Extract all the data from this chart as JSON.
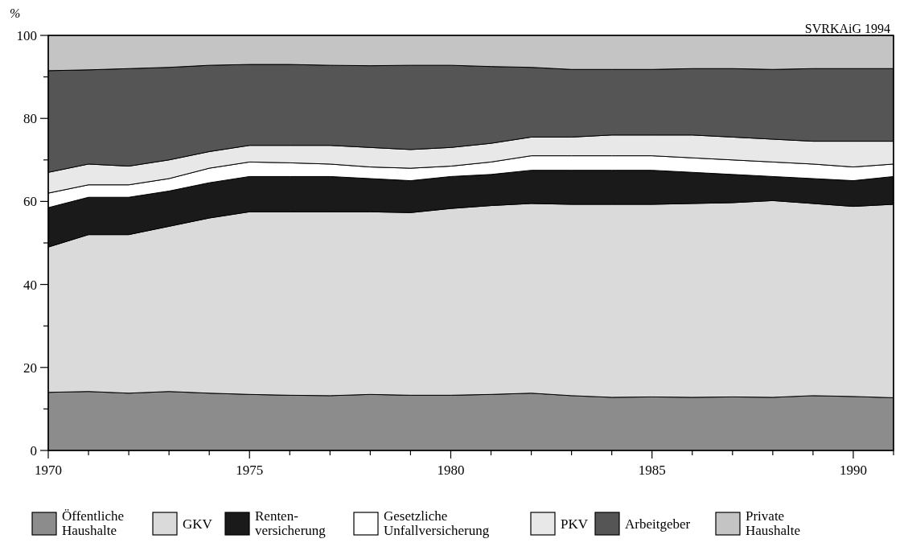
{
  "chart_data": {
    "type": "area",
    "stacked": true,
    "ylabel": "%",
    "annotations": [
      "SVRKAiG 1994"
    ],
    "x": [
      1970,
      1971,
      1972,
      1973,
      1974,
      1975,
      1976,
      1977,
      1978,
      1979,
      1980,
      1981,
      1982,
      1983,
      1984,
      1985,
      1986,
      1987,
      1988,
      1989,
      1990,
      1991
    ],
    "xlim": [
      1970,
      1991
    ],
    "xticks": [
      1970,
      {
        "value": 1971,
        "label": null
      },
      {
        "value": 1972,
        "label": null
      },
      {
        "value": 1973,
        "label": null
      },
      {
        "value": 1974,
        "label": null
      },
      1975,
      {
        "value": 1976,
        "label": null
      },
      {
        "value": 1977,
        "label": null
      },
      {
        "value": 1978,
        "label": null
      },
      {
        "value": 1979,
        "label": null
      },
      1980,
      {
        "value": 1981,
        "label": null
      },
      {
        "value": 1982,
        "label": null
      },
      {
        "value": 1983,
        "label": null
      },
      {
        "value": 1984,
        "label": null
      },
      1985,
      {
        "value": 1986,
        "label": null
      },
      {
        "value": 1987,
        "label": null
      },
      {
        "value": 1988,
        "label": null
      },
      {
        "value": 1989,
        "label": null
      },
      1990,
      {
        "value": 1991,
        "label": null
      }
    ],
    "ylim": [
      0,
      100
    ],
    "yticks": [
      0,
      {
        "value": 10,
        "label": null
      },
      20,
      {
        "value": 30,
        "label": null
      },
      40,
      {
        "value": 50,
        "label": null
      },
      60,
      {
        "value": 70,
        "label": null
      },
      80,
      {
        "value": 90,
        "label": null
      },
      100
    ],
    "grid": false,
    "legend": "bottom",
    "series": [
      {
        "name": "Öffentliche\nHaushalte",
        "color": "#8c8c8c",
        "values": [
          14,
          14.2,
          13.8,
          14.2,
          13.8,
          13.5,
          13.3,
          13.2,
          13.5,
          13.3,
          13.3,
          13.5,
          13.8,
          13.2,
          12.8,
          12.9,
          12.8,
          12.9,
          12.8,
          13.2,
          13,
          12.7
        ]
      },
      {
        "name": "GKV",
        "color": "#dadada",
        "values": [
          35,
          37.8,
          38.2,
          39.8,
          42.2,
          44,
          44.2,
          44.3,
          44,
          44,
          45,
          45.5,
          45.7,
          46.1,
          46.5,
          46.4,
          46.7,
          46.8,
          47.4,
          46.3,
          45.8,
          46.6
        ]
      },
      {
        "name": "Renten-\nversicherung",
        "color": "#1a1a1a",
        "values": [
          9.5,
          9,
          9,
          8.5,
          8.5,
          8.5,
          8.5,
          8.5,
          8,
          7.7,
          7.7,
          7.5,
          8,
          8.2,
          8.2,
          8.2,
          7.5,
          6.8,
          5.8,
          6,
          6.2,
          6.7
        ]
      },
      {
        "name": "Gesetzliche\nUnfallversicherung",
        "color": "#ffffff",
        "values": [
          3.5,
          3,
          3,
          3,
          3.5,
          3.5,
          3.3,
          3,
          2.8,
          3,
          2.5,
          3,
          3.5,
          3.5,
          3.5,
          3.5,
          3.5,
          3.5,
          3.5,
          3.5,
          3.3,
          3
        ]
      },
      {
        "name": "PKV",
        "color": "#e8e8e8",
        "values": [
          5,
          5,
          4.5,
          4.5,
          4,
          4,
          4.2,
          4.5,
          4.7,
          4.5,
          4.5,
          4.5,
          4.5,
          4.5,
          5,
          5,
          5.5,
          5.5,
          5.5,
          5.5,
          6.2,
          5.5
        ]
      },
      {
        "name": "Arbeitgeber",
        "color": "#555555",
        "values": [
          24.5,
          22.7,
          23.5,
          22.3,
          20.8,
          19.5,
          19.5,
          19.3,
          19.7,
          20.3,
          19.8,
          18.5,
          16.8,
          16.3,
          15.8,
          15.8,
          16,
          16.5,
          16.8,
          17.5,
          17.5,
          17.5
        ]
      },
      {
        "name": "Private\nHaushalte",
        "color": "#c4c4c4",
        "values": [
          8.5,
          8.3,
          8,
          7.7,
          7.2,
          7,
          7,
          7.2,
          7.3,
          7.2,
          7.2,
          7.5,
          7.7,
          8.2,
          8.2,
          8.2,
          8,
          8,
          8.2,
          8,
          8,
          8
        ]
      }
    ]
  }
}
